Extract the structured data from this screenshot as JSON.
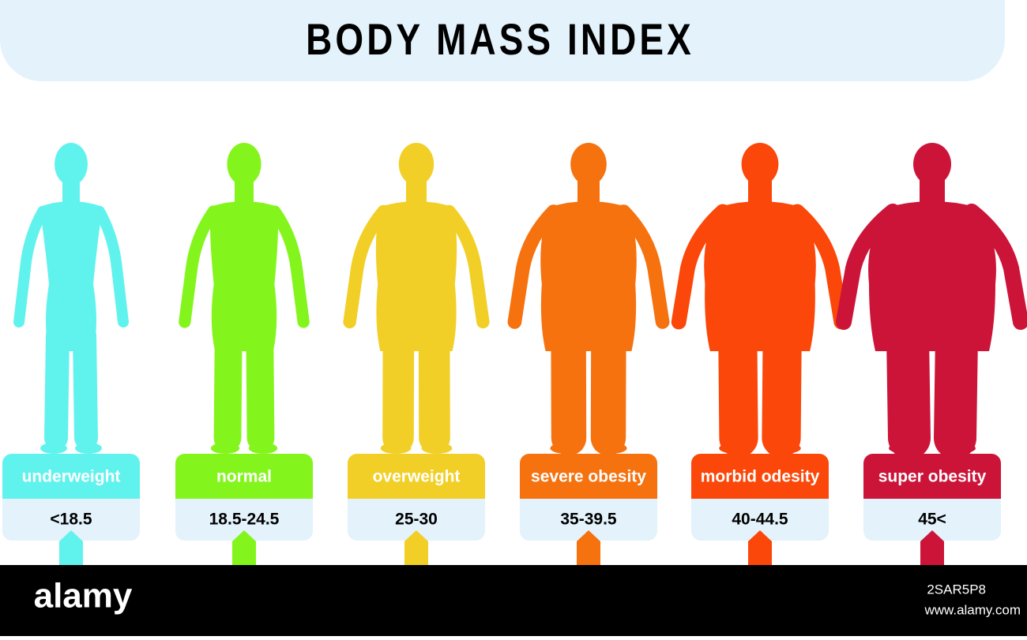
{
  "title": "BODY MASS INDEX",
  "categories": [
    {
      "label": "underweight",
      "range": "<18.5",
      "color": "#60f3ee"
    },
    {
      "label": "normal",
      "range": "18.5-24.5",
      "color": "#84f51c"
    },
    {
      "label": "overweight",
      "range": "25-30",
      "color": "#f2cf26"
    },
    {
      "label": "severe obesity",
      "range": "35-39.5",
      "color": "#f5720f"
    },
    {
      "label": "morbid odesity",
      "range": "40-44.5",
      "color": "#fb4709"
    },
    {
      "label": "super obesity",
      "range": "45<",
      "color": "#cc1439"
    }
  ],
  "footer": {
    "brand": "alamy",
    "image_id": "2SAR5P8",
    "url": "www.alamy.com"
  }
}
